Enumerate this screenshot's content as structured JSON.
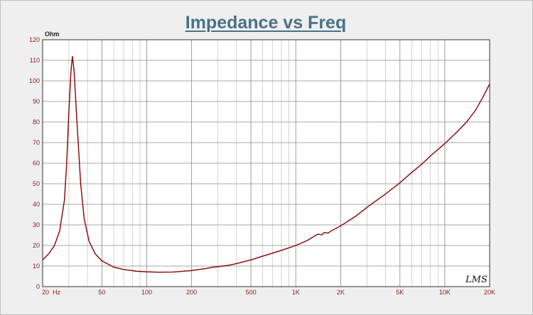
{
  "chart_data": {
    "type": "line",
    "title": "Impedance vs Freq",
    "ylabel": "Ohm",
    "xlabel": "",
    "x_scale": "log",
    "xlim": [
      20,
      20000
    ],
    "ylim": [
      0,
      120
    ],
    "grid": true,
    "x_ticks": [
      20,
      50,
      100,
      200,
      500,
      1000,
      2000,
      5000,
      10000,
      20000
    ],
    "x_tick_labels": [
      "20  Hz",
      "50",
      "100",
      "200",
      "500",
      "1K",
      "2K",
      "5K",
      "10K",
      "20K"
    ],
    "y_ticks": [
      0,
      10,
      20,
      30,
      40,
      50,
      60,
      70,
      80,
      90,
      100,
      110,
      120
    ],
    "y_tick_labels": [
      "0",
      "10",
      "20",
      "30",
      "40",
      "50",
      "60",
      "70",
      "80",
      "90",
      "100",
      "110",
      "120"
    ],
    "watermark": "LMS",
    "series": [
      {
        "color": "#8b0000",
        "points": [
          [
            20,
            13
          ],
          [
            22,
            16
          ],
          [
            24,
            20
          ],
          [
            26,
            27
          ],
          [
            28,
            42
          ],
          [
            29,
            60
          ],
          [
            30,
            85
          ],
          [
            31,
            105
          ],
          [
            31.7,
            112
          ],
          [
            32.5,
            105
          ],
          [
            34,
            80
          ],
          [
            36,
            50
          ],
          [
            38,
            33
          ],
          [
            41,
            22
          ],
          [
            45,
            16
          ],
          [
            50,
            12.5
          ],
          [
            60,
            9.5
          ],
          [
            70,
            8.3
          ],
          [
            85,
            7.5
          ],
          [
            100,
            7.2
          ],
          [
            120,
            7.0
          ],
          [
            150,
            7.1
          ],
          [
            200,
            7.8
          ],
          [
            250,
            8.8
          ],
          [
            280,
            9.5
          ],
          [
            300,
            9.7
          ],
          [
            350,
            10.3
          ],
          [
            400,
            11.2
          ],
          [
            500,
            13.0
          ],
          [
            600,
            14.8
          ],
          [
            700,
            16.3
          ],
          [
            800,
            17.6
          ],
          [
            1000,
            20.0
          ],
          [
            1200,
            22.5
          ],
          [
            1400,
            25.5
          ],
          [
            1500,
            25.2
          ],
          [
            1550,
            26.3
          ],
          [
            1650,
            26.0
          ],
          [
            1700,
            26.8
          ],
          [
            2000,
            29.5
          ],
          [
            2500,
            34.0
          ],
          [
            3000,
            38.5
          ],
          [
            4000,
            45.0
          ],
          [
            5000,
            50.5
          ],
          [
            6000,
            55.5
          ],
          [
            7000,
            59.5
          ],
          [
            8000,
            63.5
          ],
          [
            10000,
            69.5
          ],
          [
            12000,
            75.0
          ],
          [
            14000,
            80.0
          ],
          [
            16000,
            85.5
          ],
          [
            18000,
            92.0
          ],
          [
            20000,
            98.5
          ]
        ]
      }
    ]
  }
}
